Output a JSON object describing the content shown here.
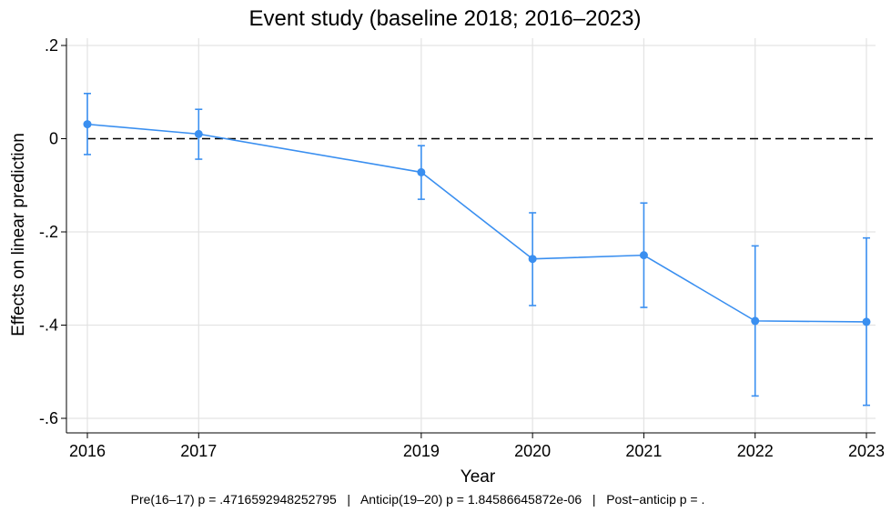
{
  "chart_data": {
    "type": "line",
    "title": "Event study (baseline 2018; 2016–2023)",
    "xlabel": "Year",
    "ylabel": "Effects on linear prediction",
    "x": [
      2016,
      2017,
      2019,
      2020,
      2021,
      2022,
      2023
    ],
    "xticks": [
      "2016",
      "2017",
      "2019",
      "2020",
      "2021",
      "2022",
      "2023"
    ],
    "yticks": [
      {
        "value": 0.2,
        "label": ".2"
      },
      {
        "value": 0,
        "label": "0"
      },
      {
        "value": -0.2,
        "label": "-.2"
      },
      {
        "value": -0.4,
        "label": "-.4"
      },
      {
        "value": -0.6,
        "label": "-.6"
      }
    ],
    "xlim": [
      2016,
      2023
    ],
    "ylim": [
      -0.62,
      0.21
    ],
    "reference_line": {
      "y": 0,
      "style": "dashed"
    },
    "grid": true,
    "series": [
      {
        "values": [
          0.031,
          0.01,
          -0.072,
          -0.258,
          -0.25,
          -0.391,
          -0.393
        ],
        "ci_low": [
          -0.034,
          -0.044,
          -0.13,
          -0.358,
          -0.362,
          -0.552,
          -0.572
        ],
        "ci_high": [
          0.097,
          0.063,
          -0.015,
          -0.159,
          -0.138,
          -0.23,
          -0.213
        ],
        "color": "#3a8ff0"
      }
    ],
    "footnote": "Pre(16–17) p = .4716592948252795   |   Anticip(19–20) p = 1.84586645872e-06   |   Post−anticip p = ."
  }
}
